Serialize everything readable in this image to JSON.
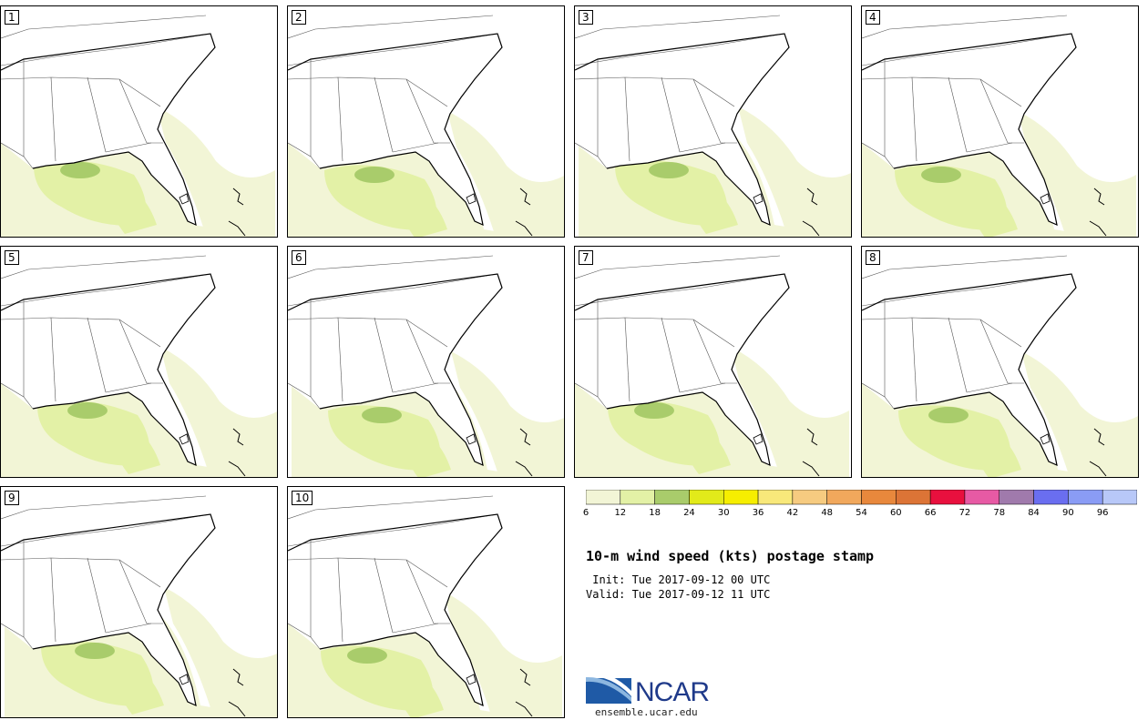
{
  "title": "10-m wind speed (kts) postage stamp",
  "init_line": " Init: Tue 2017-09-12 00 UTC",
  "valid_line": "Valid: Tue 2017-09-12 11 UTC",
  "panels": [
    {
      "label": "1"
    },
    {
      "label": "2"
    },
    {
      "label": "3"
    },
    {
      "label": "4"
    },
    {
      "label": "5"
    },
    {
      "label": "6"
    },
    {
      "label": "7"
    },
    {
      "label": "8"
    },
    {
      "label": "9"
    },
    {
      "label": "10"
    }
  ],
  "colorbar": {
    "labels": [
      "6",
      "12",
      "18",
      "24",
      "30",
      "36",
      "42",
      "48",
      "54",
      "60",
      "66",
      "72",
      "78",
      "84",
      "90",
      "96"
    ],
    "colors": [
      "#f2f5d6",
      "#e3f1a6",
      "#a9cc6b",
      "#e2ea1a",
      "#f6ee00",
      "#f8e87a",
      "#f6cb80",
      "#f1a85c",
      "#e8883c",
      "#dc7436",
      "#e8103e",
      "#e75aa4",
      "#a07aac",
      "#6a6ef0",
      "#8a9cf5",
      "#b8c8f8"
    ]
  },
  "logo": {
    "name": "NCAR",
    "url": "ensemble.ucar.edu"
  }
}
